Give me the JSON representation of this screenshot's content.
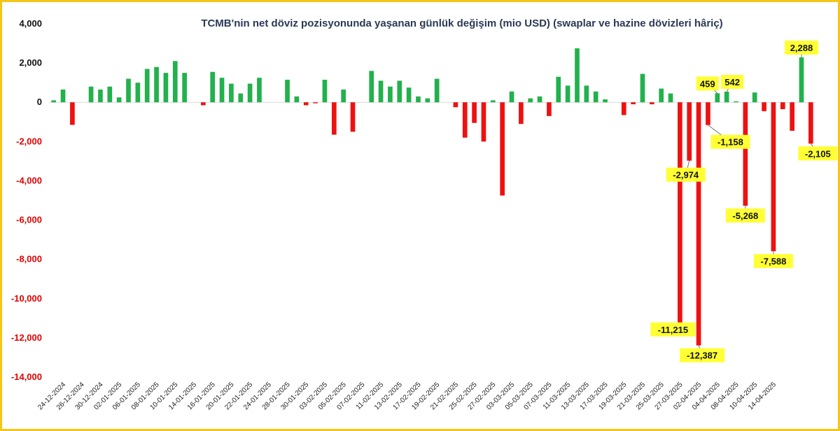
{
  "chart_data": {
    "type": "bar",
    "title": "TCMB'nin net döviz pozisyonunda yaşanan günlük değişim (mio USD) (swaplar ve hazine dövizleri hâriç)",
    "xlabel": "",
    "ylabel": "",
    "ylim": [
      -14000,
      4000
    ],
    "yticks": [
      4000,
      2000,
      0,
      -2000,
      -4000,
      -6000,
      -8000,
      -10000,
      -12000,
      -14000
    ],
    "ytick_labels": [
      "4,000",
      "2,000",
      "0",
      "-2,000",
      "-4,000",
      "-6,000",
      "-8,000",
      "-10,000",
      "-12,000",
      "-14,000"
    ],
    "colors": {
      "positive": "#22b14c",
      "negative": "#ee1111",
      "neg_tick": "#e00000",
      "pos_tick": "#111111",
      "callout_bg": "#ffff33",
      "border": "#f5c518"
    },
    "grid": false,
    "legend": "none",
    "x_tick_labels": [
      "24-12-2024",
      "26-12-2024",
      "30-12-2024",
      "02-01-2025",
      "06-01-2025",
      "08-01-2025",
      "10-01-2025",
      "14-01-2025",
      "16-01-2025",
      "20-01-2025",
      "22-01-2025",
      "24-01-2025",
      "28-01-2025",
      "30-01-2025",
      "03-02-2025",
      "05-02-2025",
      "07-02-2025",
      "11-02-2025",
      "13-02-2025",
      "17-02-2025",
      "19-02-2025",
      "21-02-2025",
      "25-02-2025",
      "27-02-2025",
      "03-03-2025",
      "05-03-2025",
      "07-03-2025",
      "11-03-2025",
      "13-03-2025",
      "17-03-2025",
      "19-03-2025",
      "21-03-2025",
      "25-03-2025",
      "27-03-2025",
      "02-04-2025",
      "04-04-2025",
      "08-04-2025",
      "10-04-2025",
      "14-04-2025"
    ],
    "values": [
      100,
      650,
      -1150,
      0,
      800,
      650,
      800,
      250,
      1200,
      1000,
      1700,
      1800,
      1500,
      2100,
      1500,
      0,
      -150,
      1550,
      1250,
      950,
      450,
      950,
      1250,
      0,
      0,
      1150,
      300,
      -150,
      -50,
      1150,
      -1650,
      650,
      -1500,
      0,
      1600,
      1100,
      800,
      1100,
      750,
      300,
      200,
      1200,
      0,
      -250,
      -1800,
      -1050,
      -2000,
      100,
      -4750,
      550,
      -1100,
      200,
      300,
      -700,
      1300,
      850,
      2750,
      850,
      550,
      150,
      0,
      -650,
      -100,
      1450,
      -100,
      700,
      450,
      -11215,
      -2974,
      -12387,
      -1158,
      459,
      542,
      50,
      -5268,
      500,
      -450,
      -7588,
      -350,
      -1450,
      2288,
      -2105
    ],
    "annotations": [
      {
        "index": 67,
        "label": "-11,215"
      },
      {
        "index": 68,
        "label": "-2,974"
      },
      {
        "index": 69,
        "label": "-12,387"
      },
      {
        "index": 70,
        "label": "-1,158"
      },
      {
        "index": 71,
        "label": "459"
      },
      {
        "index": 72,
        "label": "542"
      },
      {
        "index": 74,
        "label": "-5,268"
      },
      {
        "index": 77,
        "label": "-7,588"
      },
      {
        "index": 80,
        "label": "2,288"
      },
      {
        "index": 81,
        "label": "-2,105"
      }
    ]
  }
}
